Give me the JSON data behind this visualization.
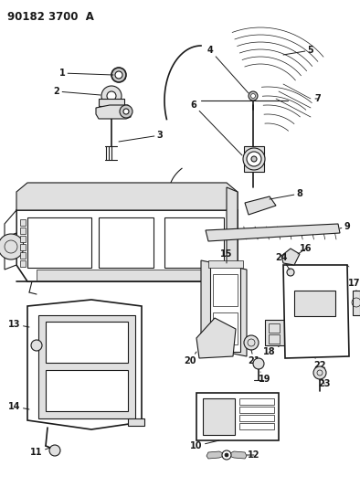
{
  "title": "90182 3700  A",
  "bg_color": "#ffffff",
  "fig_width": 3.94,
  "fig_height": 5.33,
  "dpi": 100,
  "line_color": "#1a1a1a",
  "label_fontsize": 7,
  "title_fontsize": 8.5,
  "gray_fill": "#c8c8c8",
  "light_gray": "#e0e0e0"
}
